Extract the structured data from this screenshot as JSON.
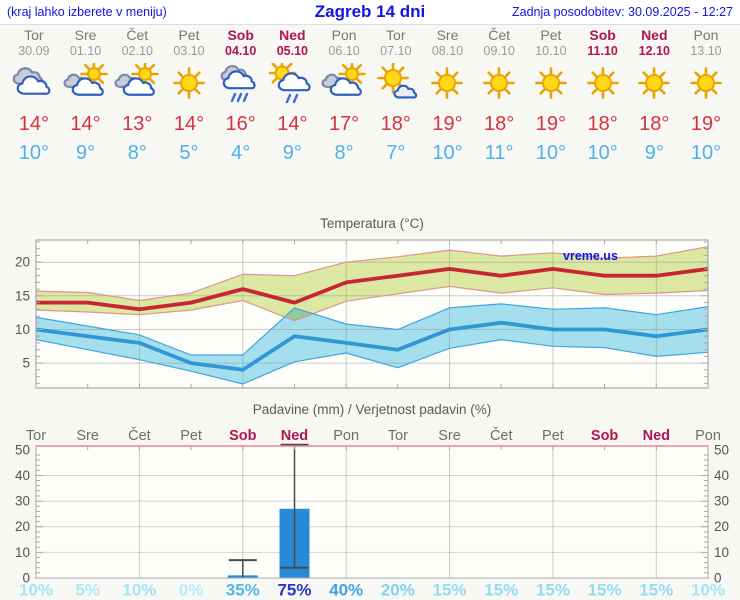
{
  "header": {
    "left": "(kraj lahko izberete v meniju)",
    "title": "Zagreb 14 dni",
    "right": "Zadnja posodobitev: 30.09.2025 - 12:27"
  },
  "days": [
    {
      "name": "Tor",
      "date": "30.09",
      "icon": "cloudy",
      "tmax": "14°",
      "tmin": "10°",
      "weekend": false
    },
    {
      "name": "Sre",
      "date": "01.10",
      "icon": "partly-cloudy",
      "tmax": "14°",
      "tmin": "9°",
      "weekend": false
    },
    {
      "name": "Čet",
      "date": "02.10",
      "icon": "partly-cloudy",
      "tmax": "13°",
      "tmin": "8°",
      "weekend": false
    },
    {
      "name": "Pet",
      "date": "03.10",
      "icon": "sunny",
      "tmax": "14°",
      "tmin": "5°",
      "weekend": false
    },
    {
      "name": "Sob",
      "date": "04.10",
      "icon": "rain",
      "tmax": "16°",
      "tmin": "4°",
      "weekend": true
    },
    {
      "name": "Ned",
      "date": "05.10",
      "icon": "sun-rain",
      "tmax": "14°",
      "tmin": "9°",
      "weekend": true
    },
    {
      "name": "Pon",
      "date": "06.10",
      "icon": "partly-cloudy",
      "tmax": "17°",
      "tmin": "8°",
      "weekend": false
    },
    {
      "name": "Tor",
      "date": "07.10",
      "icon": "mostly-sunny",
      "tmax": "18°",
      "tmin": "7°",
      "weekend": false
    },
    {
      "name": "Sre",
      "date": "08.10",
      "icon": "sunny",
      "tmax": "19°",
      "tmin": "10°",
      "weekend": false
    },
    {
      "name": "Čet",
      "date": "09.10",
      "icon": "sunny",
      "tmax": "18°",
      "tmin": "11°",
      "weekend": false
    },
    {
      "name": "Pet",
      "date": "10.10",
      "icon": "sunny",
      "tmax": "19°",
      "tmin": "10°",
      "weekend": false
    },
    {
      "name": "Sob",
      "date": "11.10",
      "icon": "sunny",
      "tmax": "18°",
      "tmin": "10°",
      "weekend": true
    },
    {
      "name": "Ned",
      "date": "12.10",
      "icon": "sunny",
      "tmax": "18°",
      "tmin": "9°",
      "weekend": true
    },
    {
      "name": "Pon",
      "date": "13.10",
      "icon": "sunny",
      "tmax": "19°",
      "tmin": "10°",
      "weekend": false
    }
  ],
  "colors": {
    "weekday": "#787878",
    "weekend": "#b3134f",
    "tmax": "#d8323f",
    "tmin": "#4fb0ea",
    "blue_text": "#1414e6",
    "chart_text": "#5a5a5a",
    "grid": "#909090",
    "axis": "#999999"
  },
  "chart_data": [
    {
      "type": "line",
      "title": "Temperatura (°C)",
      "watermark": "vreme.us",
      "categories": [
        "Tor",
        "Sre",
        "Čet",
        "Pet",
        "Sob",
        "Ned",
        "Pon",
        "Tor",
        "Sre",
        "Čet",
        "Pet",
        "Sob",
        "Ned",
        "Pon"
      ],
      "ylim": [
        1.3,
        23.3
      ],
      "yticks": [
        5,
        10,
        15,
        20
      ],
      "grid_days": [
        2,
        4,
        6,
        8,
        10,
        12
      ],
      "legend": "off",
      "series": [
        {
          "name": "max-temperature",
          "color": "#c92435",
          "band_fill": "#dbe8a2",
          "band_edge": "#e39387",
          "values": [
            14,
            14,
            13,
            14,
            16,
            14,
            17,
            18,
            19,
            18,
            19,
            18,
            18,
            19
          ],
          "band_upper": [
            15.7,
            15.5,
            14.3,
            15.4,
            18.2,
            18.0,
            20.0,
            20.8,
            21.8,
            20.9,
            21.4,
            20.6,
            20.9,
            22.3
          ],
          "band_lower": [
            12.9,
            12.6,
            12.2,
            12.9,
            14.3,
            11.3,
            14.2,
            15.3,
            16.4,
            15.4,
            16.2,
            15.2,
            15.4,
            15.8
          ]
        },
        {
          "name": "min-temperature",
          "color": "#3097d6",
          "band_fill": "#a6e0f2",
          "band_edge": "#3fa6de",
          "values": [
            10,
            9,
            8,
            5,
            4,
            9,
            8,
            7,
            10,
            11,
            10,
            10,
            9,
            10
          ],
          "band_upper": [
            11.8,
            10.5,
            9.2,
            6.2,
            6.2,
            13.2,
            10.8,
            10.0,
            13.2,
            13.8,
            13.0,
            13.2,
            12.2,
            13.4
          ],
          "band_lower": [
            8.5,
            7.0,
            5.5,
            3.8,
            1.9,
            5.2,
            6.5,
            4.3,
            7.2,
            8.5,
            7.5,
            7.3,
            6.0,
            6.6
          ]
        }
      ]
    },
    {
      "type": "bar",
      "title": "Padavine (mm) / Verjetnost padavin (%)",
      "categories": [
        "Tor",
        "Sre",
        "Čet",
        "Pet",
        "Sob",
        "Ned",
        "Pon",
        "Tor",
        "Sre",
        "Čet",
        "Pet",
        "Sob",
        "Ned",
        "Pon"
      ],
      "weekend_idx": [
        4,
        5,
        11,
        12
      ],
      "ylim": [
        0,
        51.5
      ],
      "yticks": [
        0,
        10,
        20,
        30,
        40,
        50
      ],
      "grid_days": [
        2,
        4,
        6,
        8,
        10,
        12
      ],
      "bars": {
        "color": "#268ad9",
        "amounts": [
          0,
          0,
          0,
          0,
          1,
          27,
          0,
          0,
          0,
          0,
          0,
          0,
          0,
          0
        ],
        "whisker_low": [
          null,
          null,
          null,
          null,
          0,
          4,
          null,
          null,
          null,
          null,
          null,
          null,
          null,
          null
        ],
        "whisker_high": [
          null,
          null,
          null,
          null,
          7,
          52,
          null,
          null,
          null,
          null,
          null,
          null,
          null,
          null
        ]
      },
      "probabilities": {
        "labels": [
          "10%",
          "5%",
          "10%",
          "0%",
          "35%",
          "75%",
          "40%",
          "20%",
          "15%",
          "15%",
          "15%",
          "15%",
          "15%",
          "10%"
        ],
        "values": [
          10,
          5,
          10,
          0,
          35,
          75,
          40,
          20,
          15,
          15,
          15,
          15,
          15,
          10
        ],
        "colors": [
          "#a3e4f5",
          "#aee8f6",
          "#a3e4f5",
          "#b8ecf8",
          "#54b8e8",
          "#2a35c4",
          "#3da3e8",
          "#7fd4f0",
          "#92dcf2",
          "#92dcf2",
          "#92dcf2",
          "#92dcf2",
          "#92dcf2",
          "#a3e4f5"
        ]
      }
    }
  ]
}
